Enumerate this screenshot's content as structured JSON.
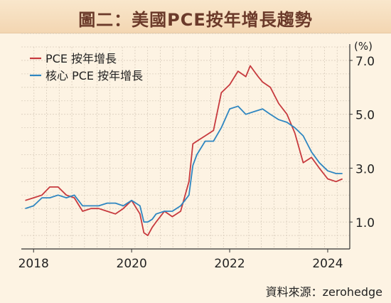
{
  "chart_data": {
    "type": "line",
    "title": "圖二：美國PCE按年增長趨勢",
    "ylabel": "(%)",
    "source": "資料來源：zerohedge",
    "ylim": [
      0,
      7.5
    ],
    "xlim": [
      2017.75,
      2024.45
    ],
    "yticks": [
      "7.0",
      "5.0",
      "3.0",
      "1.0"
    ],
    "xticks": [
      "2018",
      "2020",
      "2022",
      "2024"
    ],
    "grid": true,
    "legend_position": "top-left",
    "series": [
      {
        "name": "PCE 按年增長",
        "color": "#c73a3e",
        "x": [
          2017.83,
          2018.0,
          2018.17,
          2018.33,
          2018.5,
          2018.67,
          2018.83,
          2019.0,
          2019.17,
          2019.33,
          2019.5,
          2019.67,
          2019.83,
          2020.0,
          2020.17,
          2020.25,
          2020.33,
          2020.42,
          2020.5,
          2020.67,
          2020.83,
          2021.0,
          2021.17,
          2021.25,
          2021.33,
          2021.5,
          2021.67,
          2021.83,
          2022.0,
          2022.17,
          2022.33,
          2022.42,
          2022.5,
          2022.58,
          2022.67,
          2022.83,
          2023.0,
          2023.17,
          2023.33,
          2023.5,
          2023.67,
          2023.83,
          2024.0,
          2024.17,
          2024.3
        ],
        "values": [
          1.8,
          1.9,
          2.0,
          2.3,
          2.3,
          2.0,
          1.9,
          1.4,
          1.5,
          1.5,
          1.4,
          1.3,
          1.5,
          1.8,
          1.3,
          0.6,
          0.5,
          0.8,
          1.0,
          1.4,
          1.2,
          1.4,
          2.5,
          3.9,
          4.0,
          4.2,
          4.4,
          5.8,
          6.1,
          6.6,
          6.4,
          6.8,
          6.6,
          6.4,
          6.2,
          6.0,
          5.4,
          5.0,
          4.3,
          3.2,
          3.4,
          3.0,
          2.6,
          2.5,
          2.6
        ]
      },
      {
        "name": "核心 PCE 按年增長",
        "color": "#2e86c1",
        "x": [
          2017.83,
          2018.0,
          2018.17,
          2018.33,
          2018.5,
          2018.67,
          2018.83,
          2019.0,
          2019.17,
          2019.33,
          2019.5,
          2019.67,
          2019.83,
          2020.0,
          2020.17,
          2020.25,
          2020.33,
          2020.42,
          2020.5,
          2020.67,
          2020.83,
          2021.0,
          2021.17,
          2021.25,
          2021.33,
          2021.5,
          2021.67,
          2021.83,
          2022.0,
          2022.17,
          2022.33,
          2022.5,
          2022.67,
          2022.83,
          2023.0,
          2023.17,
          2023.33,
          2023.5,
          2023.67,
          2023.83,
          2024.0,
          2024.17,
          2024.3
        ],
        "values": [
          1.5,
          1.6,
          1.9,
          1.9,
          2.0,
          1.9,
          2.0,
          1.6,
          1.6,
          1.6,
          1.7,
          1.7,
          1.6,
          1.8,
          1.6,
          1.0,
          1.0,
          1.1,
          1.3,
          1.4,
          1.4,
          1.6,
          2.0,
          3.1,
          3.5,
          4.0,
          4.0,
          4.5,
          5.2,
          5.3,
          5.0,
          5.1,
          5.2,
          5.0,
          4.8,
          4.7,
          4.5,
          4.2,
          3.6,
          3.2,
          2.9,
          2.8,
          2.8
        ]
      }
    ]
  }
}
